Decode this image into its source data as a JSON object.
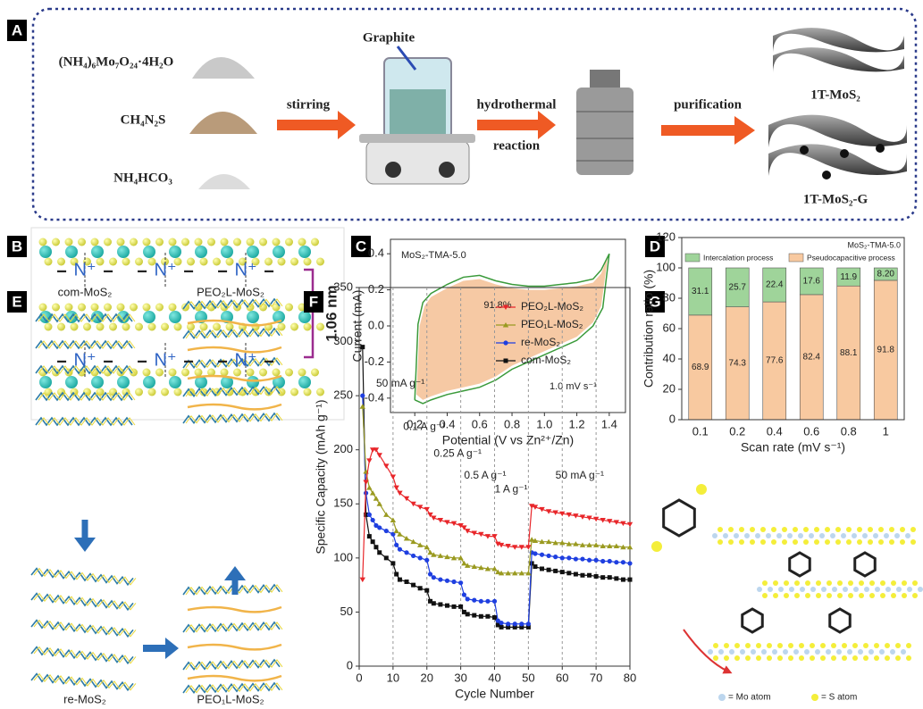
{
  "panel_labels": [
    "A",
    "B",
    "C",
    "D",
    "E",
    "F",
    "G"
  ],
  "scheme_a": {
    "reagents": [
      "(NH₄)₆Mo₇O₂₄·4H₂O",
      "CH₄N₂S",
      "NH₄HCO₃"
    ],
    "graphite": "Graphite",
    "steps": [
      "stirring",
      "hydrothermal",
      "reaction",
      "purification"
    ],
    "products": [
      "1T-MoS₂",
      "1T-MoS₂-G"
    ]
  },
  "scheme_b": {
    "ion": "N⁺",
    "minus": "−",
    "spacing": "1.06 nm"
  },
  "scheme_e": {
    "labels": [
      "com-MoS₂",
      "PEO₂L-MoS₂",
      "re-MoS₂",
      "PEO₁L-MoS₂"
    ]
  },
  "scheme_g": {
    "legend": [
      "= Mo atom",
      "= S atom"
    ]
  },
  "chart_data": [
    {
      "type": "area",
      "title": "MoS₂-TMA-5.0",
      "annotations": [
        "91.8%",
        "1.0 mV s⁻¹"
      ],
      "x_label": "Potential (V vs Zn²⁺/Zn)",
      "y_label": "Current (mA)",
      "xlim": [
        0.05,
        1.5
      ],
      "xticks": [
        0.2,
        0.4,
        0.6,
        0.8,
        {
          "value": 1,
          "label": "1.0"
        },
        1.2,
        1.4
      ],
      "ylim": [
        -0.48,
        0.48
      ],
      "yticks": [
        -0.4,
        -0.2,
        {
          "value": 0,
          "label": "0.0"
        },
        0.2,
        0.4
      ],
      "series": [
        {
          "color": "#f6c9a4",
          "fill": true,
          "x": [
            0.21,
            0.23,
            0.26,
            0.3,
            0.4,
            0.5,
            0.6,
            0.7,
            0.8,
            0.9,
            1.0,
            1.1,
            1.2,
            1.3,
            1.35,
            1.39,
            1.35,
            1.3,
            1.2,
            1.1,
            1.0,
            0.9,
            0.8,
            0.7,
            0.6,
            0.5,
            0.4,
            0.3,
            0.25,
            0.21
          ],
          "values": [
            -0.38,
            0.0,
            0.11,
            0.16,
            0.21,
            0.25,
            0.26,
            0.23,
            0.21,
            0.2,
            0.2,
            0.21,
            0.22,
            0.24,
            0.29,
            0.38,
            0.11,
            0.02,
            -0.06,
            -0.1,
            -0.14,
            -0.18,
            -0.22,
            -0.28,
            -0.32,
            -0.34,
            -0.36,
            -0.39,
            -0.41,
            -0.38
          ]
        },
        {
          "color": "#3a9a3a",
          "fill": false,
          "x": [
            0.2,
            0.22,
            0.25,
            0.3,
            0.4,
            0.5,
            0.6,
            0.7,
            0.8,
            0.9,
            1.0,
            1.1,
            1.2,
            1.3,
            1.35,
            1.4,
            1.36,
            1.3,
            1.2,
            1.1,
            1.0,
            0.9,
            0.8,
            0.7,
            0.6,
            0.5,
            0.4,
            0.3,
            0.25,
            0.2
          ],
          "values": [
            -0.41,
            0.01,
            0.13,
            0.18,
            0.23,
            0.27,
            0.28,
            0.25,
            0.23,
            0.22,
            0.22,
            0.23,
            0.24,
            0.26,
            0.31,
            0.4,
            0.1,
            0.0,
            -0.08,
            -0.12,
            -0.16,
            -0.2,
            -0.24,
            -0.3,
            -0.34,
            -0.36,
            -0.38,
            -0.41,
            -0.43,
            -0.41
          ]
        }
      ]
    },
    {
      "type": "stacked_bar",
      "title": "MoS₂-TMA-5.0",
      "x_label": "Scan rate (mV s⁻¹)",
      "y_label": "Contribution ratio (%)",
      "categories": [
        "0.1",
        "0.2",
        "0.4",
        "0.6",
        "0.8",
        "1"
      ],
      "ylim": [
        0,
        120
      ],
      "yticks": [
        0,
        20,
        40,
        60,
        80,
        100,
        120
      ],
      "legend": "upper",
      "series": [
        {
          "name": "Pseudocapacitive process",
          "color": "#f8c9a0",
          "values": [
            68.9,
            74.3,
            77.6,
            82.4,
            88.1,
            91.8
          ]
        },
        {
          "name": "Intercalation process",
          "color": "#9fd49a",
          "values": [
            31.1,
            25.7,
            22.4,
            17.6,
            11.9,
            8.2
          ],
          "value_labels": [
            "31.1",
            "25.7",
            "22.4",
            "17.6",
            "11.9",
            "8.20"
          ]
        }
      ]
    },
    {
      "type": "line",
      "x_label": "Cycle Number",
      "y_label": "Specific Capacity (mAh g⁻¹)",
      "annotations": [
        "50 mA g⁻¹",
        "0.1 A g⁻¹",
        "0.25 A g⁻¹",
        "0.5 A g⁻¹",
        "1 A g⁻¹",
        "50 mA g⁻¹"
      ],
      "xlim": [
        0,
        80
      ],
      "xticks": [
        0,
        10,
        20,
        30,
        40,
        50,
        60,
        70,
        80
      ],
      "ylim": [
        0,
        350
      ],
      "yticks": [
        0,
        50,
        100,
        150,
        200,
        250,
        300,
        350
      ],
      "grid_x": true,
      "legend": "upper right",
      "x": [
        1,
        2,
        3,
        4,
        5,
        6,
        8,
        10,
        11,
        12,
        14,
        16,
        18,
        20,
        21,
        22,
        24,
        26,
        28,
        30,
        31,
        32,
        34,
        36,
        38,
        40,
        41,
        42,
        44,
        46,
        48,
        50,
        51,
        52,
        54,
        56,
        58,
        60,
        62,
        64,
        66,
        68,
        70,
        72,
        74,
        76,
        78,
        80
      ],
      "series": [
        {
          "name": "PEO₂L-MoS₂",
          "color": "#e8262a",
          "marker": "triangle-down",
          "values": [
            80,
            170,
            190,
            200,
            200,
            195,
            185,
            175,
            165,
            160,
            155,
            150,
            147,
            145,
            140,
            137,
            135,
            133,
            132,
            130,
            128,
            125,
            123,
            122,
            120,
            120,
            113,
            112,
            111,
            110,
            110,
            110,
            148,
            147,
            145,
            143,
            142,
            141,
            140,
            139,
            138,
            137,
            136,
            135,
            134,
            133,
            132,
            131
          ]
        },
        {
          "name": "PEO₁L-MoS₂",
          "color": "#9a9a20",
          "marker": "triangle-up",
          "values": [
            240,
            180,
            165,
            160,
            155,
            150,
            140,
            135,
            125,
            122,
            118,
            115,
            112,
            110,
            105,
            103,
            102,
            101,
            100,
            100,
            95,
            93,
            92,
            91,
            90,
            90,
            87,
            86,
            86,
            86,
            86,
            86,
            117,
            116,
            115,
            115,
            114,
            114,
            113,
            113,
            112,
            112,
            112,
            111,
            111,
            111,
            110,
            110
          ]
        },
        {
          "name": "re-MoS₂",
          "color": "#1f3fe0",
          "marker": "circle",
          "values": [
            250,
            160,
            140,
            135,
            130,
            128,
            125,
            122,
            112,
            108,
            105,
            102,
            100,
            98,
            85,
            82,
            80,
            79,
            78,
            77,
            66,
            62,
            61,
            60,
            60,
            60,
            42,
            40,
            39,
            39,
            39,
            39,
            105,
            104,
            103,
            102,
            101,
            100,
            100,
            99,
            99,
            98,
            98,
            97,
            97,
            96,
            96,
            95
          ]
        },
        {
          "name": "com-MoS₂",
          "color": "#111111",
          "marker": "square",
          "values": [
            295,
            140,
            120,
            115,
            110,
            105,
            100,
            95,
            85,
            80,
            78,
            75,
            72,
            70,
            60,
            58,
            57,
            56,
            55,
            55,
            50,
            48,
            47,
            46,
            46,
            45,
            38,
            36,
            36,
            36,
            36,
            36,
            95,
            92,
            90,
            89,
            88,
            87,
            86,
            85,
            84,
            84,
            83,
            82,
            82,
            81,
            80,
            80
          ]
        }
      ]
    }
  ]
}
